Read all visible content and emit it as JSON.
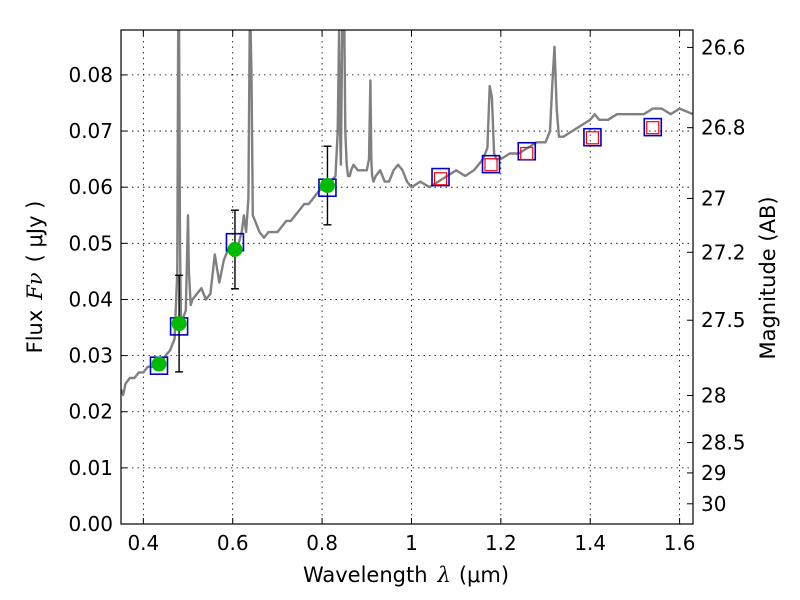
{
  "chart_data": {
    "type": "line",
    "xlabel_prefix": "Wavelength",
    "xlabel_symbol": "λ",
    "xlabel_unit": "(μm)",
    "ylabel_prefix": "Flux",
    "ylabel_symbol": "Fν",
    "ylabel_unit": "( μJy )",
    "y2label": "Magnitude (AB)",
    "xlim": [
      0.35,
      1.63
    ],
    "ylim": [
      0.0,
      0.088
    ],
    "grid": true,
    "x_ticks": [
      {
        "v": 0.4,
        "label": "0.4"
      },
      {
        "v": 0.6,
        "label": "0.6"
      },
      {
        "v": 0.8,
        "label": "0.8"
      },
      {
        "v": 1.0,
        "label": "1"
      },
      {
        "v": 1.2,
        "label": "1.2"
      },
      {
        "v": 1.4,
        "label": "1.4"
      },
      {
        "v": 1.6,
        "label": "1.6"
      }
    ],
    "y_ticks": [
      {
        "v": 0.0,
        "label": "0.00"
      },
      {
        "v": 0.01,
        "label": "0.01"
      },
      {
        "v": 0.02,
        "label": "0.02"
      },
      {
        "v": 0.03,
        "label": "0.03"
      },
      {
        "v": 0.04,
        "label": "0.04"
      },
      {
        "v": 0.05,
        "label": "0.05"
      },
      {
        "v": 0.06,
        "label": "0.06"
      },
      {
        "v": 0.07,
        "label": "0.07"
      },
      {
        "v": 0.08,
        "label": "0.08"
      }
    ],
    "mag_ticks": [
      {
        "v": 0.0849,
        "label": "26.6"
      },
      {
        "v": 0.0706,
        "label": "26.8"
      },
      {
        "v": 0.058,
        "label": "27"
      },
      {
        "v": 0.0484,
        "label": "27.2"
      },
      {
        "v": 0.0363,
        "label": "27.5"
      },
      {
        "v": 0.0229,
        "label": "28"
      },
      {
        "v": 0.0145,
        "label": "28.5"
      },
      {
        "v": 0.0091,
        "label": "29"
      },
      {
        "v": 0.0036,
        "label": "30"
      }
    ],
    "series": [
      {
        "name": "model spectrum",
        "color": "#808080",
        "kind": "line",
        "x": [
          0.35,
          0.355,
          0.36,
          0.37,
          0.38,
          0.39,
          0.4,
          0.41,
          0.42,
          0.43,
          0.44,
          0.45,
          0.46,
          0.47,
          0.476,
          0.478,
          0.48,
          0.482,
          0.484,
          0.486,
          0.49,
          0.495,
          0.5,
          0.502,
          0.504,
          0.506,
          0.51,
          0.52,
          0.53,
          0.54,
          0.55,
          0.56,
          0.57,
          0.58,
          0.59,
          0.6,
          0.61,
          0.62,
          0.625,
          0.63,
          0.635,
          0.638,
          0.64,
          0.642,
          0.645,
          0.65,
          0.655,
          0.66,
          0.67,
          0.68,
          0.69,
          0.7,
          0.71,
          0.72,
          0.73,
          0.74,
          0.75,
          0.76,
          0.77,
          0.78,
          0.79,
          0.8,
          0.81,
          0.82,
          0.83,
          0.835,
          0.838,
          0.84,
          0.842,
          0.845,
          0.85,
          0.852,
          0.855,
          0.858,
          0.86,
          0.862,
          0.865,
          0.87,
          0.88,
          0.89,
          0.9,
          0.905,
          0.908,
          0.91,
          0.912,
          0.915,
          0.92,
          0.93,
          0.94,
          0.95,
          0.96,
          0.97,
          0.98,
          0.99,
          1.0,
          1.02,
          1.04,
          1.06,
          1.08,
          1.1,
          1.12,
          1.14,
          1.16,
          1.17,
          1.175,
          1.18,
          1.185,
          1.19,
          1.2,
          1.22,
          1.24,
          1.26,
          1.28,
          1.3,
          1.31,
          1.315,
          1.32,
          1.325,
          1.33,
          1.34,
          1.36,
          1.38,
          1.4,
          1.41,
          1.42,
          1.44,
          1.46,
          1.48,
          1.5,
          1.52,
          1.54,
          1.56,
          1.58,
          1.6,
          1.63
        ],
        "y": [
          0.024,
          0.023,
          0.025,
          0.026,
          0.026,
          0.027,
          0.027,
          0.028,
          0.028,
          0.029,
          0.029,
          0.03,
          0.031,
          0.033,
          0.045,
          0.088,
          0.088,
          0.05,
          0.037,
          0.036,
          0.037,
          0.038,
          0.055,
          0.045,
          0.042,
          0.039,
          0.04,
          0.041,
          0.042,
          0.04,
          0.041,
          0.048,
          0.043,
          0.047,
          0.049,
          0.05,
          0.049,
          0.052,
          0.055,
          0.052,
          0.058,
          0.088,
          0.088,
          0.08,
          0.055,
          0.054,
          0.053,
          0.052,
          0.051,
          0.052,
          0.052,
          0.052,
          0.053,
          0.054,
          0.054,
          0.055,
          0.056,
          0.057,
          0.057,
          0.058,
          0.059,
          0.06,
          0.06,
          0.061,
          0.062,
          0.07,
          0.088,
          0.07,
          0.064,
          0.088,
          0.088,
          0.07,
          0.064,
          0.062,
          0.062,
          0.062,
          0.063,
          0.064,
          0.063,
          0.063,
          0.063,
          0.065,
          0.079,
          0.065,
          0.062,
          0.061,
          0.062,
          0.063,
          0.061,
          0.061,
          0.063,
          0.064,
          0.063,
          0.061,
          0.06,
          0.061,
          0.06,
          0.061,
          0.062,
          0.063,
          0.062,
          0.063,
          0.065,
          0.067,
          0.078,
          0.076,
          0.066,
          0.065,
          0.065,
          0.066,
          0.066,
          0.067,
          0.068,
          0.068,
          0.07,
          0.078,
          0.085,
          0.074,
          0.069,
          0.069,
          0.07,
          0.071,
          0.072,
          0.073,
          0.072,
          0.072,
          0.073,
          0.073,
          0.073,
          0.073,
          0.074,
          0.074,
          0.073,
          0.074,
          0.073
        ]
      },
      {
        "name": "model photometry",
        "color": "#0000cc",
        "kind": "open-square",
        "x": [
          0.435,
          0.48,
          0.605,
          0.812,
          1.065,
          1.178,
          1.258,
          1.405,
          1.54
        ],
        "y": [
          0.0282,
          0.0352,
          0.0502,
          0.0599,
          0.0618,
          0.0641,
          0.0664,
          0.0689,
          0.0707
        ]
      },
      {
        "name": "observed photometry",
        "color": "#ff0000",
        "kind": "small-square",
        "x": [
          1.065,
          1.178,
          1.258,
          1.405,
          1.54
        ],
        "y": [
          0.0615,
          0.064,
          0.066,
          0.0688,
          0.0706
        ]
      },
      {
        "name": "observed photometry (error bars)",
        "color": "#00bb00",
        "kind": "filled-circle",
        "x": [
          0.435,
          0.48,
          0.605,
          0.812
        ],
        "y": [
          0.0285,
          0.0357,
          0.0489,
          0.0603
        ],
        "err": [
          0.0,
          0.0086,
          0.007,
          0.007
        ]
      }
    ]
  }
}
